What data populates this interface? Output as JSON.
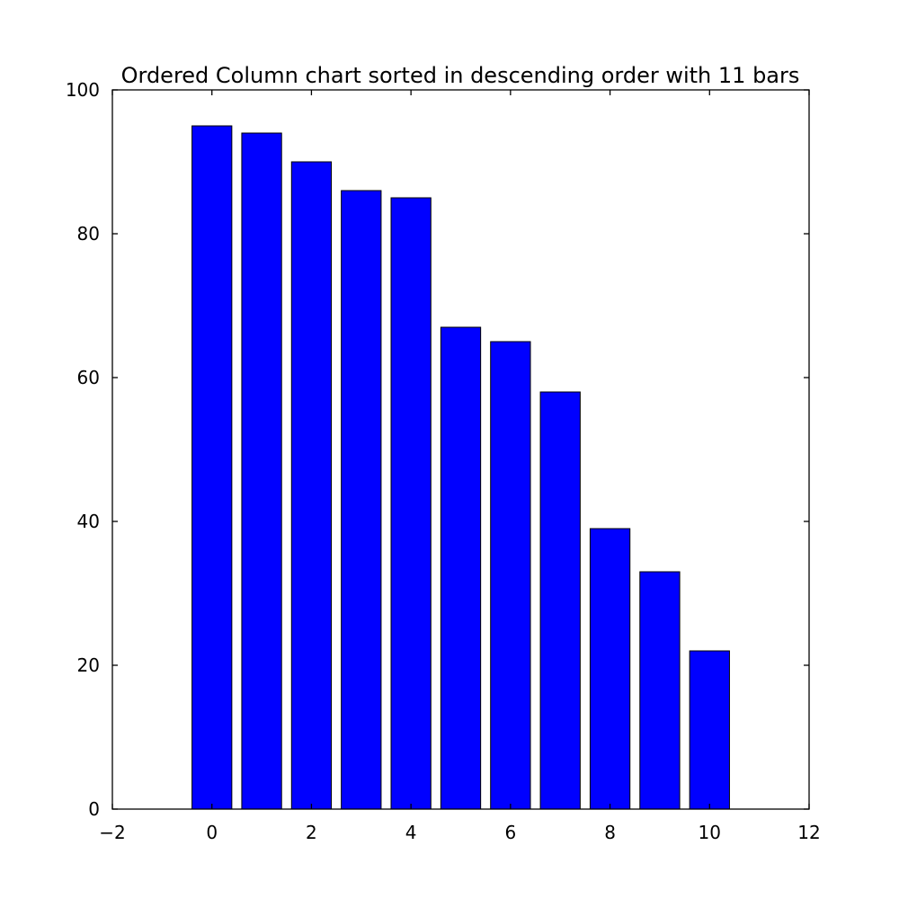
{
  "chart_data": {
    "type": "bar",
    "title": "Ordered Column chart sorted in descending order with 11 bars",
    "xlabel": "",
    "ylabel": "",
    "x": [
      0,
      1,
      2,
      3,
      4,
      5,
      6,
      7,
      8,
      9,
      10
    ],
    "values": [
      95,
      94,
      90,
      86,
      85,
      67,
      65,
      58,
      39,
      33,
      22
    ],
    "bar_width": 0.8,
    "xlim": [
      -2,
      12
    ],
    "ylim": [
      0,
      100
    ],
    "xticks": [
      -2,
      0,
      2,
      4,
      6,
      8,
      10,
      12
    ],
    "xtick_labels": [
      "−2",
      "0",
      "2",
      "4",
      "6",
      "8",
      "10",
      "12"
    ],
    "yticks": [
      0,
      20,
      40,
      60,
      80,
      100
    ],
    "ytick_labels": [
      "0",
      "20",
      "40",
      "60",
      "80",
      "100"
    ],
    "bar_color": "#0000ff",
    "grid": false,
    "legend": false
  }
}
